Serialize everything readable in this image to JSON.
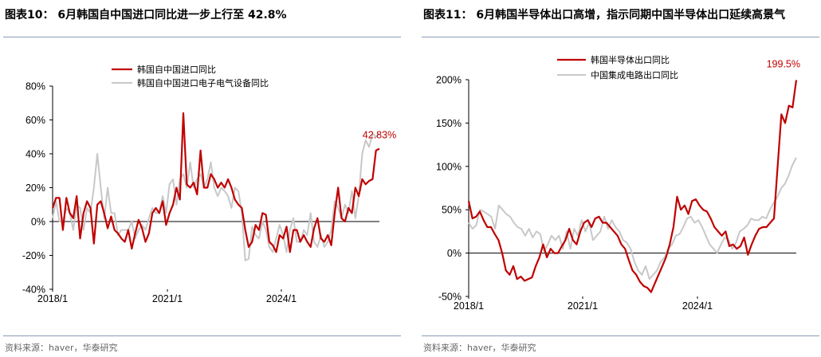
{
  "charts": [
    {
      "title": "图表10：  6月韩国自中国进口同比进一步上行至 42.8%",
      "source": "资料来源：haver，华泰研究",
      "end_label": "42.83%"
    },
    {
      "title": "图表11：  6月韩国半导体出口高增，指示同期中国半导体出口延续高景气",
      "source": "资料来源：haver，华泰研究",
      "end_label": "199.5%"
    }
  ],
  "colors": {
    "series_primary": "#c00000",
    "series_secondary": "#c8c8c8",
    "rule": "#8a9bb4",
    "axis": "#000000"
  },
  "chart_data": [
    {
      "type": "line",
      "x_tick_labels": [
        "2018/1",
        "2021/1",
        "2024/1"
      ],
      "y_tick_labels": [
        "80%",
        "60%",
        "40%",
        "20%",
        "0%",
        "-20%",
        "-40%"
      ],
      "ylim": [
        -40,
        80
      ],
      "grid": false,
      "legend_position": "top",
      "series": [
        {
          "name": "韩国自中国进口同比",
          "color": "#c00000",
          "values": [
            8,
            14,
            14,
            -5,
            14,
            5,
            2,
            15,
            -10,
            5,
            12,
            8,
            -13,
            10,
            12,
            5,
            -4,
            3,
            -5,
            -7,
            -10,
            -12,
            -5,
            -16,
            -7,
            1,
            -4,
            -12,
            -7,
            5,
            8,
            5,
            12,
            -2,
            5,
            10,
            20,
            13,
            64,
            22,
            20,
            23,
            16,
            42,
            20,
            20,
            28,
            25,
            20,
            23,
            20,
            25,
            20,
            13,
            10,
            8,
            -5,
            -15,
            -12,
            -2,
            -5,
            5,
            4,
            -12,
            -14,
            -18,
            -8,
            -10,
            -3,
            -18,
            -5,
            -5,
            -12,
            -8,
            -12,
            -15,
            -4,
            2,
            -10,
            -12,
            -8,
            -14,
            5,
            20,
            2,
            0,
            8,
            5,
            20,
            15,
            25,
            22,
            24,
            25,
            42,
            43
          ]
        },
        {
          "name": "韩国自中国进口电子电气设备同比",
          "color": "#c8c8c8",
          "values": [
            2,
            12,
            0,
            0,
            8,
            5,
            -5,
            10,
            8,
            -5,
            8,
            5,
            20,
            40,
            20,
            2,
            20,
            5,
            5,
            -8,
            -5,
            -5,
            -5,
            0,
            -10,
            -5,
            -2,
            -5,
            2,
            8,
            5,
            5,
            15,
            5,
            22,
            25,
            10,
            25,
            28,
            20,
            35,
            20,
            25,
            28,
            20,
            25,
            35,
            20,
            15,
            20,
            18,
            15,
            8,
            20,
            18,
            5,
            -23,
            -22,
            -3,
            -8,
            -10,
            0,
            -5,
            -15,
            -18,
            -10,
            -2,
            -8,
            -18,
            -5,
            2,
            -12,
            -12,
            -5,
            -8,
            5,
            -12,
            -15,
            -8,
            -15,
            -12,
            -5,
            12,
            8,
            2,
            10,
            5,
            18,
            2,
            15,
            40,
            48,
            44,
            52,
            50,
            52
          ]
        }
      ]
    },
    {
      "type": "line",
      "x_tick_labels": [
        "2018/1",
        "2021/1",
        "2024/1"
      ],
      "y_tick_labels": [
        "200%",
        "150%",
        "100%",
        "50%",
        "0%",
        "-50%"
      ],
      "ylim": [
        -50,
        200
      ],
      "grid": false,
      "legend_position": "top",
      "series": [
        {
          "name": "韩国半导体出口同比",
          "color": "#c00000",
          "values": [
            60,
            40,
            42,
            48,
            38,
            30,
            30,
            22,
            15,
            0,
            -20,
            -25,
            -15,
            -30,
            -27,
            -32,
            -30,
            -28,
            -15,
            -5,
            10,
            -5,
            5,
            0,
            0,
            8,
            15,
            28,
            15,
            10,
            25,
            35,
            38,
            30,
            40,
            42,
            35,
            35,
            30,
            25,
            20,
            10,
            5,
            -8,
            -20,
            -25,
            -33,
            -38,
            -40,
            -45,
            -35,
            -25,
            -15,
            -5,
            10,
            30,
            65,
            50,
            55,
            45,
            60,
            62,
            55,
            50,
            48,
            40,
            30,
            25,
            20,
            25,
            8,
            10,
            5,
            8,
            18,
            -2,
            10,
            20,
            28,
            30,
            30,
            35,
            40,
            100,
            160,
            150,
            170,
            168,
            199.5
          ]
        },
        {
          "name": "中国集成电路出口同比",
          "color": "#c8c8c8",
          "values": [
            35,
            28,
            32,
            50,
            48,
            45,
            42,
            28,
            55,
            50,
            45,
            42,
            35,
            30,
            28,
            20,
            28,
            18,
            25,
            22,
            2,
            10,
            20,
            15,
            20,
            5,
            25,
            5,
            28,
            20,
            38,
            25,
            35,
            15,
            20,
            25,
            42,
            28,
            38,
            30,
            25,
            15,
            12,
            5,
            -10,
            -20,
            -25,
            -15,
            -30,
            -25,
            -20,
            -10,
            -5,
            5,
            10,
            20,
            22,
            30,
            40,
            42,
            35,
            38,
            30,
            20,
            10,
            5,
            0,
            10,
            18,
            15,
            5,
            12,
            25,
            28,
            32,
            40,
            38,
            38,
            42,
            40,
            50,
            58,
            65,
            75,
            80,
            90,
            102,
            110
          ]
        }
      ]
    }
  ]
}
